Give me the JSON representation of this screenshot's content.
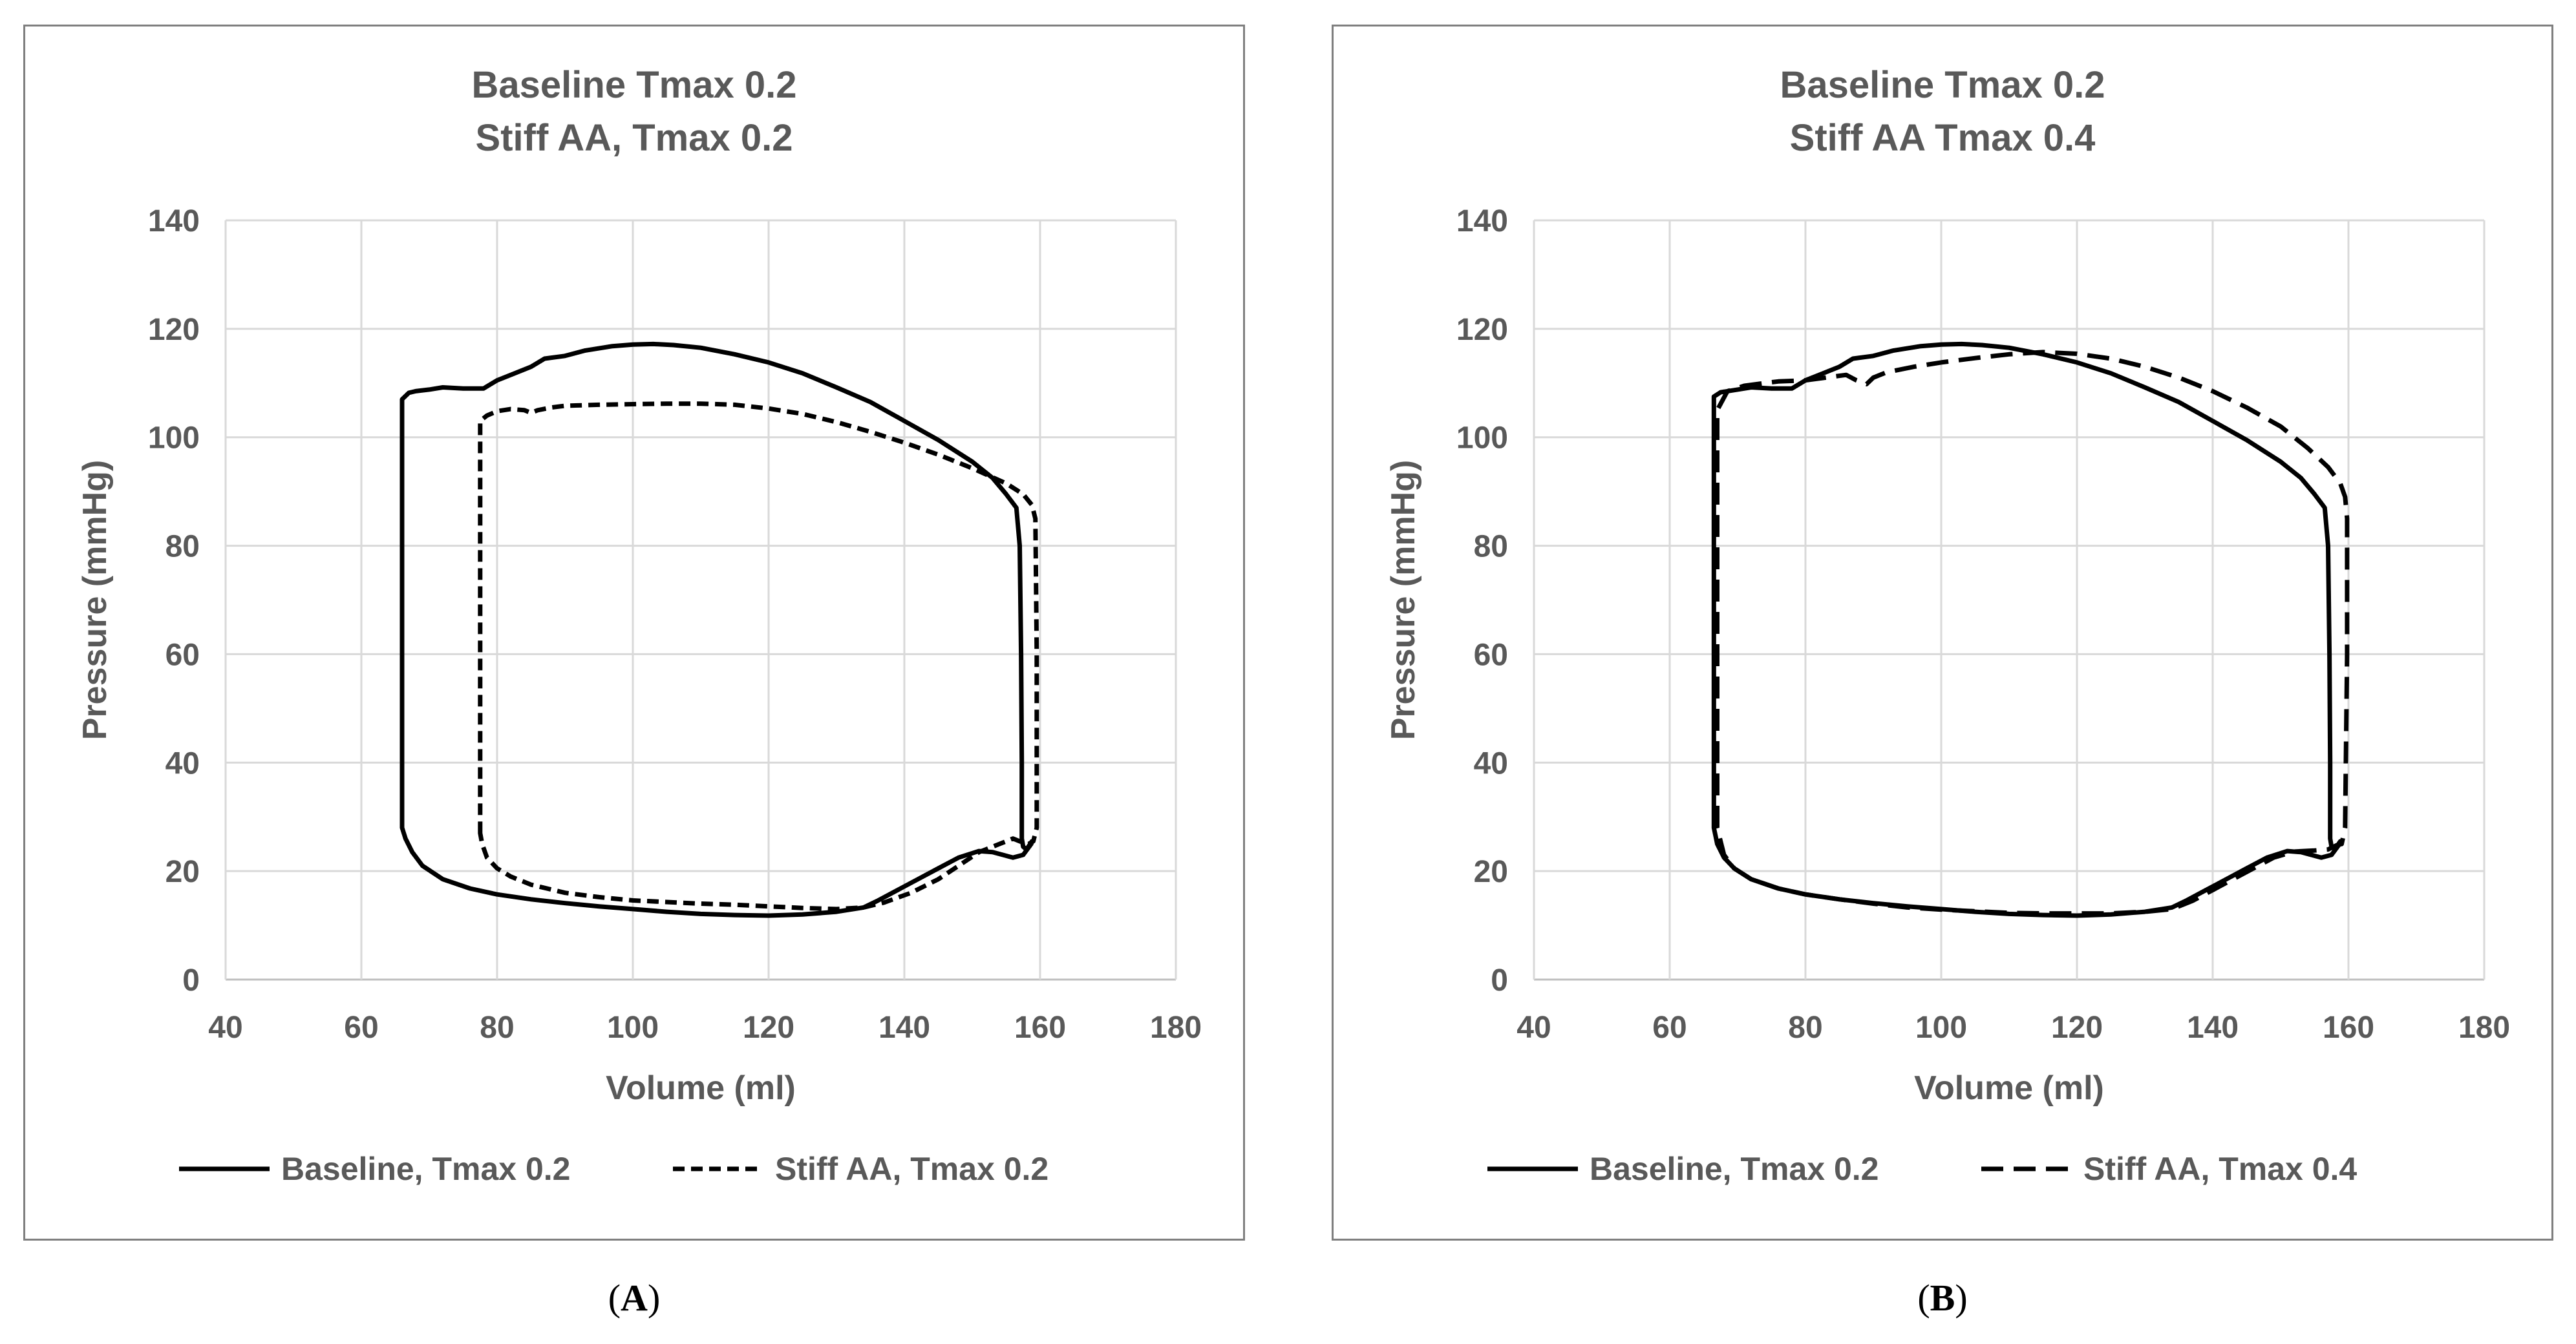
{
  "charts": [
    {
      "id": "A",
      "caption": "A",
      "title_line1": "Baseline Tmax 0.2",
      "title_line2": "Stiff AA, Tmax 0.2",
      "chart_data": {
        "type": "line",
        "title": "Baseline Tmax 0.2 / Stiff AA, Tmax 0.2",
        "xlabel": "Volume (ml)",
        "ylabel": "Pressure (mmHg)",
        "xlim": [
          40,
          180
        ],
        "ylim": [
          0,
          140
        ],
        "xticks": [
          "40",
          "60",
          "80",
          "100",
          "120",
          "140",
          "160",
          "180"
        ],
        "yticks": [
          "0",
          "20",
          "40",
          "60",
          "80",
          "100",
          "120",
          "140"
        ],
        "grid": true,
        "legend_position": "bottom",
        "series": [
          {
            "name": "Baseline, Tmax 0.2",
            "style": "solid",
            "x": [
              66,
              66,
              67,
              68,
              70,
              72,
              75,
              78,
              80,
              82,
              85,
              87,
              90,
              93,
              97,
              100,
              103,
              106,
              110,
              115,
              120,
              125,
              130,
              135,
              140,
              145,
              150,
              153,
              155,
              156.5,
              157,
              157.2,
              157.3,
              157.3,
              157.5,
              158,
              158.8,
              158.7,
              157.5,
              156,
              154.5,
              153,
              151,
              148,
              145,
              142,
              139,
              136,
              134,
              130,
              125,
              120,
              115,
              110,
              105,
              100,
              95,
              90,
              85,
              80,
              76,
              72,
              69,
              67.5,
              66.5,
              66
            ],
            "y": [
              28,
              107,
              108.2,
              108.5,
              108.8,
              109.2,
              109,
              109,
              110.5,
              111.5,
              113,
              114.5,
              115,
              116,
              116.8,
              117.1,
              117.2,
              117,
              116.5,
              115.3,
              113.8,
              111.8,
              109.2,
              106.5,
              103,
              99.5,
              95.5,
              92.5,
              89.5,
              87,
              80,
              60,
              40,
              26,
              24.5,
              24,
              25.5,
              25,
              23,
              22.5,
              23,
              23.5,
              23.7,
              22.5,
              20.5,
              18.5,
              16.5,
              14.5,
              13.3,
              12.5,
              12,
              11.8,
              11.9,
              12.1,
              12.5,
              13,
              13.5,
              14.1,
              14.8,
              15.7,
              16.8,
              18.5,
              21,
              23.5,
              26,
              28
            ]
          },
          {
            "name": "Stiff AA, Tmax 0.2",
            "style": "dash",
            "x": [
              77.5,
              77.5,
              78.5,
              80,
              82,
              84,
              85,
              86,
              88,
              90,
              95,
              100,
              105,
              110,
              115,
              120,
              125,
              130,
              135,
              140,
              145,
              150,
              155,
              157.5,
              158.8,
              159.3,
              159.5,
              159.5,
              159,
              158.3,
              157,
              156,
              155,
              153,
              151,
              148,
              145,
              141,
              137,
              134,
              130,
              125,
              120,
              115,
              110,
              105,
              100,
              95,
              90,
              85,
              82,
              80,
              78.5,
              77.8,
              77.5
            ],
            "y": [
              27,
              103,
              104,
              104.8,
              105.2,
              105,
              104.5,
              105,
              105.5,
              105.8,
              106,
              106.1,
              106.2,
              106.2,
              106,
              105.3,
              104.3,
              102.8,
              101,
              99,
              96.8,
              94.3,
              91.5,
              89.5,
              87.5,
              85,
              60,
              28,
              25.5,
              25,
              25.5,
              26,
              25.5,
              24.5,
              23.5,
              21,
              18.5,
              16,
              14.2,
              13.3,
              13,
              13.2,
              13.5,
              13.8,
              14,
              14.3,
              14.6,
              15.2,
              16,
              17.5,
              19,
              20.5,
              22.5,
              25,
              27
            ]
          }
        ]
      }
    },
    {
      "id": "B",
      "caption": "B",
      "title_line1": "Baseline Tmax 0.2",
      "title_line2": "Stiff AA Tmax 0.4",
      "chart_data": {
        "type": "line",
        "title": "Baseline Tmax 0.2 / Stiff AA Tmax 0.4",
        "xlabel": "Volume (ml)",
        "ylabel": "Pressure (mmHg)",
        "xlim": [
          40,
          180
        ],
        "ylim": [
          0,
          140
        ],
        "xticks": [
          "40",
          "60",
          "80",
          "100",
          "120",
          "140",
          "160",
          "180"
        ],
        "yticks": [
          "0",
          "20",
          "40",
          "60",
          "80",
          "100",
          "120",
          "140"
        ],
        "grid": true,
        "legend_position": "bottom",
        "series": [
          {
            "name": "Baseline, Tmax 0.2",
            "style": "solid",
            "x": [
              66.5,
              66.5,
              67.5,
              68.5,
              70,
              72,
              75,
              78,
              80,
              82,
              85,
              87,
              90,
              93,
              97,
              100,
              103,
              106,
              110,
              115,
              120,
              125,
              130,
              135,
              140,
              145,
              150,
              153,
              155,
              156.5,
              157,
              157.2,
              157.3,
              157.3,
              157.5,
              158,
              158.8,
              158.7,
              157.5,
              156,
              154.5,
              153,
              151,
              148,
              145,
              142,
              139,
              136,
              134,
              130,
              125,
              120,
              115,
              110,
              105,
              100,
              95,
              90,
              85,
              80,
              76,
              72,
              69.5,
              68,
              67,
              66.5
            ],
            "y": [
              28,
              107.5,
              108.3,
              108.5,
              108.8,
              109.2,
              109,
              109,
              110.5,
              111.5,
              113,
              114.5,
              115,
              116,
              116.8,
              117.1,
              117.2,
              117,
              116.5,
              115.3,
              113.8,
              111.8,
              109.2,
              106.5,
              103,
              99.5,
              95.5,
              92.5,
              89.5,
              87,
              80,
              60,
              40,
              26,
              24.5,
              24,
              25.5,
              25,
              23,
              22.5,
              23,
              23.5,
              23.7,
              22.5,
              20.5,
              18.5,
              16.5,
              14.5,
              13.3,
              12.5,
              12,
              11.8,
              11.9,
              12.1,
              12.5,
              13,
              13.5,
              14.1,
              14.8,
              15.7,
              16.8,
              18.5,
              20.5,
              22.5,
              25,
              28
            ]
          },
          {
            "name": "Stiff AA, Tmax 0.4",
            "style": "dash",
            "x": [
              67,
              67,
              68.5,
              71,
              74,
              76,
              80,
              83,
              86,
              87.5,
              89,
              90,
              92,
              96,
              100,
              105,
              110,
              115,
              120,
              125,
              130,
              135,
              140,
              145,
              150,
              154,
              157,
              158.8,
              159.5,
              159.8,
              159.8,
              159.5,
              159,
              158.3,
              157,
              155,
              152,
              149,
              146,
              143,
              140,
              137,
              134,
              130,
              125,
              120,
              115,
              110,
              105,
              100,
              95,
              90,
              85,
              80,
              76,
              72,
              69.5,
              68,
              67
            ],
            "y": [
              28,
              105,
              108.5,
              109.5,
              110,
              110.3,
              110.5,
              111,
              111.5,
              110.5,
              109.8,
              111,
              112,
              113,
              113.8,
              114.6,
              115.3,
              115.7,
              115.4,
              114.5,
              113,
              111,
              108.5,
              105.5,
              102,
              98,
              94.5,
              91.5,
              89,
              85,
              60,
              28,
              25,
              24.8,
              24,
              23.8,
              23.6,
              22.5,
              20.5,
              18.5,
              16.5,
              14.5,
              13,
              12.5,
              12.2,
              12.2,
              12.2,
              12.3,
              12.6,
              12.9,
              13.3,
              14,
              14.8,
              15.7,
              16.8,
              18.5,
              20.5,
              23,
              28
            ]
          }
        ]
      }
    }
  ]
}
